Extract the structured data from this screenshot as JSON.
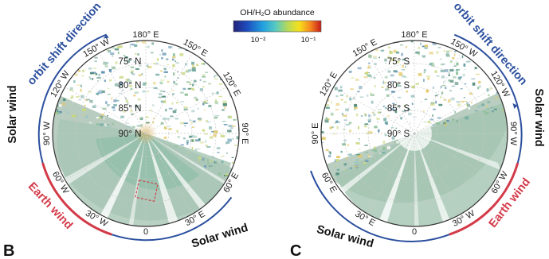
{
  "colorbar": {
    "title": "OH/H₂O abundance",
    "tick_low": "10⁻²",
    "tick_high": "10⁻¹",
    "colors": [
      "#23207a",
      "#1d4fc0",
      "#23a2df",
      "#58c9c1",
      "#b6d957",
      "#f6e11b",
      "#f5861f",
      "#c51b1b"
    ]
  },
  "panel_b": {
    "letter": "B",
    "lon_labels": [
      "180° E",
      "150° E",
      "120° E",
      "90° E",
      "60° E",
      "30° E",
      "0",
      "30° W",
      "60° W",
      "90° W",
      "120° W",
      "150° W"
    ],
    "lat_labels": [
      "75° N",
      "80° N",
      "85° N",
      "90° N"
    ],
    "orbit_shift": "orbit shift direction",
    "solar_wind_left": "Solar wind",
    "earth_wind": "Earth wind",
    "solar_wind_bottom": "Solar wind"
  },
  "panel_c": {
    "letter": "C",
    "lon_labels": [
      "180° E",
      "150° W",
      "120° W",
      "90° W",
      "60° W",
      "30° W",
      "0",
      "30° E",
      "60° E",
      "90° E",
      "120° E",
      "150° E"
    ],
    "lat_labels": [
      "75° S",
      "80° S",
      "85° S",
      "90° S"
    ],
    "orbit_shift": "orbit shift direction",
    "solar_wind_right": "Solar wind",
    "earth_wind": "Earth wind",
    "solar_wind_bottom": "Solar wind"
  },
  "colors": {
    "blue_arc": "#2b4f9e",
    "red_arc": "#d33a48",
    "black_arc": "#111111"
  }
}
